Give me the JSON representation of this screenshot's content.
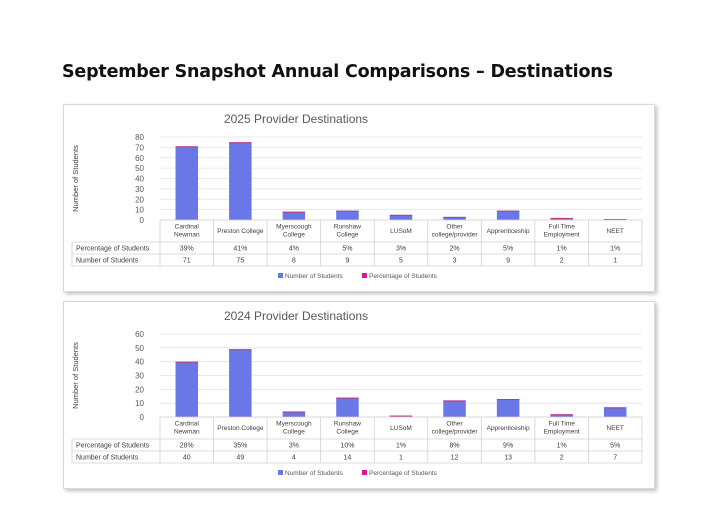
{
  "page": {
    "title": "September Snapshot Annual Comparisons – Destinations"
  },
  "colors": {
    "bar": "#6a77e6",
    "bar_top": "#c0387f",
    "percent_legend": "#d6179b",
    "grid": "#e3e3e3"
  },
  "chart_data": [
    {
      "type": "bar",
      "title": "2025 Provider Destinations",
      "ylabel": "Number of Students",
      "ylim": [
        0,
        80
      ],
      "yticks": [
        0,
        10,
        20,
        30,
        40,
        50,
        60,
        70,
        80
      ],
      "categories": [
        [
          "Cardinal",
          "Newman"
        ],
        [
          "Preston College"
        ],
        [
          "Myerscough",
          "College"
        ],
        [
          "Runshaw",
          "College"
        ],
        [
          "LUSoM"
        ],
        [
          "Other",
          "college/provider"
        ],
        [
          "Apprenticeship"
        ],
        [
          "Full Time",
          "Employment"
        ],
        [
          "NEET"
        ]
      ],
      "series": [
        {
          "name": "Percentage of Students",
          "values": [
            "39%",
            "41%",
            "4%",
            "5%",
            "3%",
            "2%",
            "5%",
            "1%",
            "1%"
          ]
        },
        {
          "name": "Number of Students",
          "values": [
            71,
            75,
            8,
            9,
            5,
            3,
            9,
            2,
            1
          ]
        }
      ],
      "legend": [
        "Number of Students",
        "Percentage of Students"
      ],
      "legend_position": "bottom",
      "grid": true
    },
    {
      "type": "bar",
      "title": "2024 Provider Destinations",
      "ylabel": "Number of Students",
      "ylim": [
        0,
        60
      ],
      "yticks": [
        0,
        10,
        20,
        30,
        40,
        50,
        60
      ],
      "categories": [
        [
          "Cardinal",
          "Newman"
        ],
        [
          "Preston College"
        ],
        [
          "Myerscough",
          "College"
        ],
        [
          "Runshaw",
          "College"
        ],
        [
          "LUSoM"
        ],
        [
          "Other",
          "college/provider"
        ],
        [
          "Apprenticeship"
        ],
        [
          "Full Time",
          "Employment"
        ],
        [
          "NEET"
        ]
      ],
      "series": [
        {
          "name": "Percentage of Students",
          "values": [
            "28%",
            "35%",
            "3%",
            "10%",
            "1%",
            "8%",
            "9%",
            "1%",
            "5%"
          ]
        },
        {
          "name": "Number of Students",
          "values": [
            40,
            49,
            4,
            14,
            1,
            12,
            13,
            2,
            7
          ]
        }
      ],
      "legend": [
        "Number of Students",
        "Percentage of Students"
      ],
      "legend_position": "bottom",
      "grid": true
    }
  ]
}
